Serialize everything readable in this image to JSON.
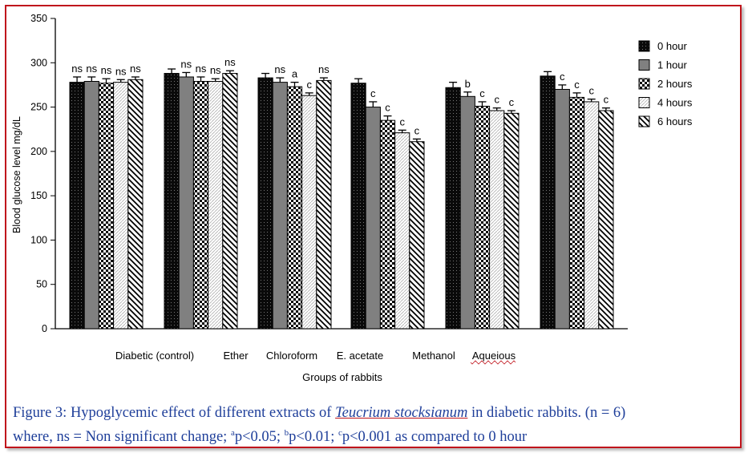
{
  "chart_data": {
    "type": "bar",
    "title": "",
    "xlabel": "Groups  of rabbits",
    "ylabel": "Blood glucose level  mg/dL",
    "ylim": [
      0,
      350
    ],
    "yticks": [
      0,
      50,
      100,
      150,
      200,
      250,
      300,
      350
    ],
    "categories": [
      "Diabetic (control)",
      "Ether",
      "Chloroform",
      "E. acetate",
      "Methanol",
      "Aqueious"
    ],
    "legend_position": "top-right",
    "series": [
      {
        "name": "0 hour",
        "pattern": "black-dots",
        "values": [
          278,
          288,
          283,
          277,
          272,
          285
        ],
        "errors": [
          6,
          5,
          5,
          5,
          6,
          5
        ],
        "labels": [
          "ns",
          "",
          "",
          "",
          "",
          ""
        ]
      },
      {
        "name": "1 hour",
        "pattern": "gray",
        "values": [
          279,
          284,
          278,
          250,
          262,
          270
        ],
        "errors": [
          5,
          5,
          5,
          6,
          5,
          5
        ],
        "labels": [
          "ns",
          "ns",
          "ns",
          "c",
          "b",
          "c"
        ]
      },
      {
        "name": "2 hours",
        "pattern": "checker",
        "values": [
          277,
          279,
          273,
          235,
          251,
          261
        ],
        "errors": [
          5,
          5,
          5,
          5,
          5,
          5
        ],
        "labels": [
          "ns",
          "ns",
          "a",
          "c",
          "c",
          "c"
        ]
      },
      {
        "name": "4 hours",
        "pattern": "light-hatch",
        "values": [
          278,
          279,
          263,
          221,
          246,
          256
        ],
        "errors": [
          3,
          3,
          3,
          3,
          3,
          3
        ],
        "labels": [
          "ns",
          "ns",
          "c",
          "c",
          "c",
          "c"
        ]
      },
      {
        "name": "6 hours",
        "pattern": "diagonal",
        "values": [
          281,
          288,
          280,
          211,
          243,
          246
        ],
        "errors": [
          3,
          3,
          3,
          3,
          3,
          3
        ],
        "labels": [
          "ns",
          "ns",
          "ns",
          "c",
          "c",
          "c"
        ]
      }
    ]
  },
  "caption": {
    "prefix": "Figure 3: Hypoglycemic effect of different extracts of ",
    "species": "Teucrium stocksianum",
    "suffix": " in diabetic rabbits. (n = 6)",
    "line2_start": "where, ns = Non significant change; ",
    "sup_a": "a",
    "part_a": "p<0.05; ",
    "sup_b": "b",
    "part_b": "p<0.01; ",
    "sup_c": "c",
    "part_c": "p<0.001 as compared to 0 hour"
  }
}
